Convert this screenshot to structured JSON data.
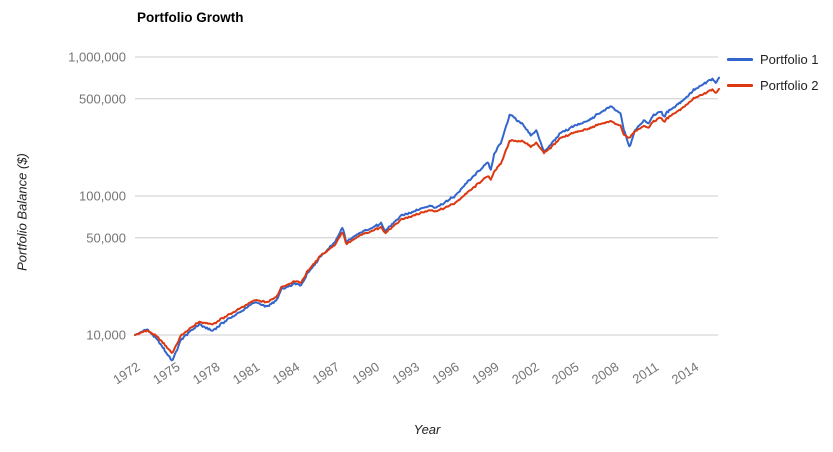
{
  "chart_data": {
    "type": "line",
    "title": "Portfolio Growth",
    "xlabel": "Year",
    "ylabel": "Portfolio Balance ($)",
    "y_scale": "log",
    "grid": true,
    "legend_position": "right",
    "x_range": [
      1972,
      2016
    ],
    "y_range": [
      10000,
      1000000
    ],
    "x_ticks": [
      1972,
      1975,
      1978,
      1981,
      1984,
      1987,
      1990,
      1993,
      1996,
      1999,
      2002,
      2005,
      2008,
      2011,
      2014
    ],
    "y_ticks": [
      1000000,
      500000,
      100000,
      50000,
      10000
    ],
    "y_tick_labels": [
      "1,000,000",
      "500,000",
      "100,000",
      "50,000",
      "10,000"
    ],
    "colors": {
      "portfolio1": "#3366cc",
      "portfolio2": "#dc3912",
      "gridline": "#cccccc",
      "tick_text": "#757575"
    },
    "x": [
      1972.0,
      1972.9,
      1973.7,
      1974.8,
      1975.5,
      1976.8,
      1977.8,
      1979.0,
      1980.1,
      1981.0,
      1981.9,
      1982.6,
      1983.0,
      1984.0,
      1984.5,
      1985.0,
      1986.0,
      1987.0,
      1987.6,
      1987.9,
      1989.0,
      1990.5,
      1990.8,
      1992.0,
      1993.0,
      1994.2,
      1994.6,
      1996.0,
      1997.0,
      1998.55,
      1998.75,
      1999.0,
      1999.5,
      2000.2,
      2000.65,
      2001.0,
      2001.75,
      2002.2,
      2002.75,
      2003.2,
      2004.0,
      2005.0,
      2006.0,
      2007.0,
      2007.8,
      2008.5,
      2008.8,
      2009.2,
      2009.6,
      2010.3,
      2010.55,
      2011.0,
      2011.55,
      2011.8,
      2012.0,
      2013.0,
      2014.0,
      2015.0,
      2015.4,
      2015.65,
      2015.92
    ],
    "series": [
      {
        "name": "Portfolio 1",
        "color": "#3366cc",
        "values": [
          10000,
          11000,
          9200,
          6500,
          9400,
          11900,
          10700,
          13000,
          15000,
          17300,
          15900,
          17500,
          21400,
          23500,
          22800,
          28000,
          37000,
          46000,
          59000,
          46500,
          55000,
          63000,
          56000,
          72000,
          78000,
          85000,
          82500,
          99000,
          126000,
          175000,
          153000,
          200000,
          240000,
          390000,
          355000,
          340000,
          275000,
          295000,
          205000,
          230000,
          285000,
          318000,
          345000,
          398000,
          442000,
          390000,
          290000,
          222000,
          300000,
          352000,
          330000,
          380000,
          408000,
          368000,
          400000,
          470000,
          575000,
          660000,
          700000,
          650000,
          710000
        ]
      },
      {
        "name": "Portfolio 2",
        "color": "#dc3912",
        "values": [
          10000,
          10800,
          9700,
          7400,
          10000,
          12400,
          11900,
          13900,
          15900,
          17900,
          17100,
          18600,
          22100,
          24400,
          23900,
          29000,
          37500,
          44000,
          55000,
          44800,
          52800,
          59500,
          54000,
          67500,
          73000,
          79000,
          77500,
          88000,
          106000,
          140000,
          131000,
          150000,
          170000,
          253000,
          248000,
          250000,
          228000,
          242000,
          203000,
          220000,
          262000,
          285000,
          302000,
          330000,
          344000,
          318000,
          272000,
          262000,
          292000,
          322000,
          308000,
          345000,
          368000,
          340000,
          362000,
          420000,
          500000,
          555000,
          585000,
          548000,
          590000
        ]
      }
    ]
  }
}
